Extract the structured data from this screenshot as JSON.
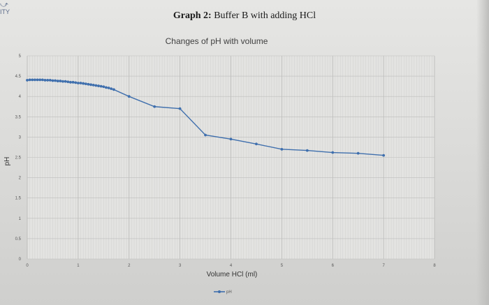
{
  "page": {
    "corner_text": "ITY"
  },
  "chart_data": {
    "type": "line",
    "title_bold": "Graph 2:",
    "title_rest": " Buffer B with adding HCl",
    "subtitle": "Changes of pH with volume",
    "xlabel": "Volume HCl (ml)",
    "ylabel": "pH",
    "xlim": [
      0,
      8
    ],
    "ylim": [
      0,
      5
    ],
    "xticks": [
      0,
      1,
      2,
      3,
      4,
      5,
      6,
      7,
      8
    ],
    "yticks": [
      0,
      0.5,
      1,
      1.5,
      2,
      2.5,
      3,
      3.5,
      4,
      4.5,
      5
    ],
    "grid": true,
    "legend_position": "bottom-center",
    "series": [
      {
        "name": "pH",
        "color": "#3f6fad",
        "x": [
          0,
          0.05,
          0.1,
          0.15,
          0.2,
          0.25,
          0.3,
          0.35,
          0.4,
          0.45,
          0.5,
          0.55,
          0.6,
          0.65,
          0.7,
          0.75,
          0.8,
          0.85,
          0.9,
          0.95,
          1.0,
          1.05,
          1.1,
          1.15,
          1.2,
          1.25,
          1.3,
          1.35,
          1.4,
          1.45,
          1.5,
          1.55,
          1.6,
          1.65,
          1.7,
          2.0,
          2.5,
          3.0,
          3.5,
          4.0,
          4.5,
          5.0,
          5.5,
          6.0,
          6.5,
          7.0
        ],
        "y": [
          4.4,
          4.41,
          4.41,
          4.41,
          4.41,
          4.41,
          4.41,
          4.4,
          4.4,
          4.4,
          4.39,
          4.39,
          4.38,
          4.38,
          4.37,
          4.37,
          4.36,
          4.35,
          4.35,
          4.34,
          4.33,
          4.33,
          4.32,
          4.31,
          4.3,
          4.29,
          4.28,
          4.27,
          4.26,
          4.25,
          4.24,
          4.22,
          4.21,
          4.19,
          4.17,
          4.0,
          3.75,
          3.7,
          3.05,
          2.95,
          2.83,
          2.7,
          2.67,
          2.62,
          2.6,
          2.55
        ]
      }
    ]
  }
}
